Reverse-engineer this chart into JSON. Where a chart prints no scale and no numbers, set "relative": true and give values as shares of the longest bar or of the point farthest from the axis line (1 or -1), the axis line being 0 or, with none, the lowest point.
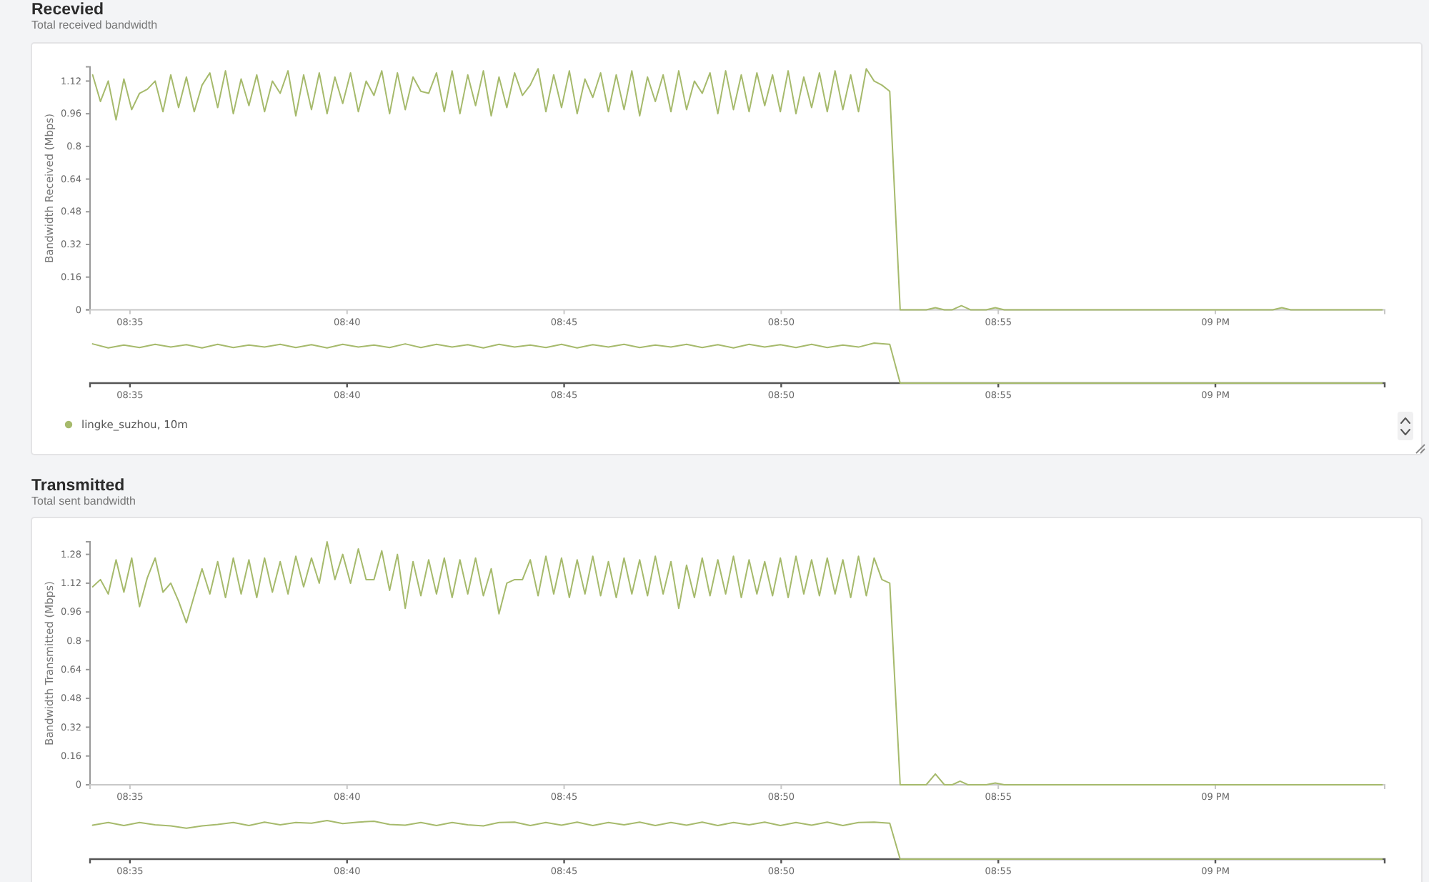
{
  "chart_data": [
    {
      "type": "line",
      "title": "Recevied",
      "subtitle": "Total received bandwidth",
      "ylabel": "Bandwidth Received (Mbps)",
      "x": [
        8.569,
        8.572,
        8.575,
        8.578,
        8.581,
        8.584,
        8.587,
        8.59,
        8.593,
        8.596,
        8.599,
        8.602,
        8.605,
        8.608,
        8.611,
        8.614,
        8.617,
        8.62,
        8.623,
        8.626,
        8.629,
        8.632,
        8.635,
        8.638,
        8.641,
        8.644,
        8.647,
        8.65,
        8.653,
        8.656,
        8.659,
        8.662,
        8.665,
        8.668,
        8.671,
        8.674,
        8.677,
        8.68,
        8.683,
        8.686,
        8.689,
        8.692,
        8.695,
        8.698,
        8.701,
        8.704,
        8.707,
        8.71,
        8.713,
        8.716,
        8.719,
        8.722,
        8.725,
        8.728,
        8.731,
        8.734,
        8.737,
        8.74,
        8.743,
        8.746,
        8.749,
        8.752,
        8.755,
        8.758,
        8.761,
        8.764,
        8.767,
        8.77,
        8.773,
        8.776,
        8.779,
        8.782,
        8.785,
        8.788,
        8.791,
        8.794,
        8.797,
        8.8,
        8.803,
        8.806,
        8.809,
        8.812,
        8.815,
        8.818,
        8.821,
        8.824,
        8.827,
        8.83,
        8.833,
        8.836,
        8.839,
        8.842,
        8.845,
        8.848,
        8.851,
        8.854,
        8.857,
        8.86,
        8.863,
        8.866,
        8.869,
        8.872,
        8.875,
        8.879,
        8.889,
        8.8925,
        8.896,
        8.899,
        8.9025,
        8.906,
        8.912,
        8.9155,
        8.919,
        9.022,
        9.0255,
        9.029,
        9.064
      ],
      "series": [
        {
          "color": "#a6ba6c",
          "values": [
            1.15,
            1.02,
            1.12,
            0.93,
            1.13,
            0.98,
            1.06,
            1.08,
            1.12,
            0.97,
            1.15,
            0.99,
            1.14,
            0.97,
            1.1,
            1.16,
            0.99,
            1.17,
            0.96,
            1.13,
            1.0,
            1.15,
            0.97,
            1.12,
            1.06,
            1.17,
            0.95,
            1.15,
            0.98,
            1.16,
            0.96,
            1.14,
            1.01,
            1.16,
            0.97,
            1.12,
            1.05,
            1.17,
            0.96,
            1.16,
            0.98,
            1.14,
            1.07,
            1.06,
            1.16,
            0.97,
            1.17,
            0.96,
            1.15,
            1.0,
            1.17,
            0.95,
            1.14,
            0.99,
            1.16,
            1.05,
            1.1,
            1.18,
            0.97,
            1.15,
            0.99,
            1.17,
            0.96,
            1.13,
            1.04,
            1.16,
            0.97,
            1.15,
            0.98,
            1.17,
            0.95,
            1.14,
            1.02,
            1.15,
            0.97,
            1.17,
            0.98,
            1.12,
            1.06,
            1.16,
            0.96,
            1.17,
            0.98,
            1.15,
            0.97,
            1.16,
            1.0,
            1.15,
            0.97,
            1.17,
            0.96,
            1.14,
            0.99,
            1.16,
            0.97,
            1.17,
            0.98,
            1.15,
            0.97,
            1.18,
            1.12,
            1.1,
            1.07,
            0,
            0,
            0.01,
            0,
            0,
            0.02,
            0,
            0,
            0.01,
            0,
            0,
            0.01,
            0,
            0
          ]
        }
      ],
      "xlim": [
        8.568,
        9.065
      ],
      "ylim": [
        0,
        1.19
      ],
      "xticks": [
        {
          "value": 8.58333,
          "label": "08:35"
        },
        {
          "value": 8.66667,
          "label": "08:40"
        },
        {
          "value": 8.75,
          "label": "08:45"
        },
        {
          "value": 8.83333,
          "label": "08:50"
        },
        {
          "value": 8.91667,
          "label": "08:55"
        },
        {
          "value": 9,
          "label": "09 PM"
        }
      ],
      "yticks": [
        0,
        0.16,
        0.32,
        0.48,
        0.64,
        0.8,
        0.96,
        1.12
      ]
    },
    {
      "type": "line",
      "relative": true,
      "x": [
        8.569,
        8.575,
        8.581,
        8.587,
        8.593,
        8.599,
        8.605,
        8.611,
        8.617,
        8.623,
        8.629,
        8.635,
        8.641,
        8.647,
        8.653,
        8.659,
        8.665,
        8.671,
        8.677,
        8.683,
        8.689,
        8.695,
        8.701,
        8.707,
        8.713,
        8.719,
        8.725,
        8.731,
        8.737,
        8.743,
        8.749,
        8.755,
        8.761,
        8.767,
        8.773,
        8.779,
        8.785,
        8.791,
        8.797,
        8.803,
        8.809,
        8.815,
        8.821,
        8.827,
        8.833,
        8.839,
        8.845,
        8.851,
        8.857,
        8.863,
        8.869,
        8.875,
        8.879,
        9.064
      ],
      "series": [
        {
          "name": "lingke_suzhou, 10m",
          "color": "#a6ba6c",
          "values": [
            0.98,
            0.88,
            0.95,
            0.89,
            0.97,
            0.9,
            0.96,
            0.88,
            0.97,
            0.89,
            0.95,
            0.9,
            0.97,
            0.89,
            0.96,
            0.88,
            0.97,
            0.9,
            0.95,
            0.89,
            0.98,
            0.89,
            0.97,
            0.9,
            0.96,
            0.88,
            0.97,
            0.9,
            0.95,
            0.89,
            0.97,
            0.88,
            0.96,
            0.9,
            0.97,
            0.89,
            0.95,
            0.9,
            0.97,
            0.89,
            0.96,
            0.88,
            0.97,
            0.9,
            0.96,
            0.89,
            0.97,
            0.89,
            0.95,
            0.9,
            1.0,
            0.97,
            0,
            0
          ]
        }
      ],
      "xlim": [
        8.568,
        9.065
      ],
      "xticks": [
        {
          "value": 8.58333,
          "label": "08:35"
        },
        {
          "value": 8.66667,
          "label": "08:40"
        },
        {
          "value": 8.75,
          "label": "08:45"
        },
        {
          "value": 8.83333,
          "label": "08:50"
        },
        {
          "value": 8.91667,
          "label": "08:55"
        },
        {
          "value": 9,
          "label": "09 PM"
        }
      ],
      "legend": "bottom left"
    },
    {
      "type": "line",
      "title": "Transmitted",
      "subtitle": "Total sent bandwidth",
      "ylabel": "Bandwidth Transmitted (Mbps)",
      "x": [
        8.569,
        8.572,
        8.575,
        8.578,
        8.581,
        8.584,
        8.587,
        8.59,
        8.593,
        8.596,
        8.599,
        8.602,
        8.605,
        8.608,
        8.611,
        8.614,
        8.617,
        8.62,
        8.623,
        8.626,
        8.629,
        8.632,
        8.635,
        8.638,
        8.641,
        8.644,
        8.647,
        8.65,
        8.653,
        8.656,
        8.659,
        8.662,
        8.665,
        8.668,
        8.671,
        8.674,
        8.677,
        8.68,
        8.683,
        8.686,
        8.689,
        8.692,
        8.695,
        8.698,
        8.701,
        8.704,
        8.707,
        8.71,
        8.713,
        8.716,
        8.719,
        8.722,
        8.725,
        8.728,
        8.731,
        8.734,
        8.737,
        8.74,
        8.743,
        8.746,
        8.749,
        8.752,
        8.755,
        8.758,
        8.761,
        8.764,
        8.767,
        8.77,
        8.773,
        8.776,
        8.779,
        8.782,
        8.785,
        8.788,
        8.791,
        8.794,
        8.797,
        8.8,
        8.803,
        8.806,
        8.809,
        8.812,
        8.815,
        8.818,
        8.821,
        8.824,
        8.827,
        8.83,
        8.833,
        8.836,
        8.839,
        8.842,
        8.845,
        8.848,
        8.851,
        8.854,
        8.857,
        8.86,
        8.863,
        8.866,
        8.869,
        8.872,
        8.875,
        8.879,
        8.889,
        8.8925,
        8.896,
        8.899,
        8.902,
        8.905,
        8.912,
        8.9155,
        8.919,
        9.064
      ],
      "series": [
        {
          "color": "#a6ba6c",
          "values": [
            1.1,
            1.14,
            1.06,
            1.25,
            1.07,
            1.26,
            0.99,
            1.15,
            1.26,
            1.07,
            1.12,
            1.02,
            0.9,
            1.05,
            1.2,
            1.06,
            1.24,
            1.04,
            1.26,
            1.06,
            1.25,
            1.04,
            1.26,
            1.07,
            1.24,
            1.06,
            1.27,
            1.1,
            1.26,
            1.12,
            1.35,
            1.14,
            1.28,
            1.12,
            1.31,
            1.14,
            1.14,
            1.3,
            1.08,
            1.28,
            0.98,
            1.24,
            1.05,
            1.25,
            1.06,
            1.26,
            1.04,
            1.25,
            1.06,
            1.26,
            1.05,
            1.2,
            0.95,
            1.12,
            1.14,
            1.14,
            1.25,
            1.05,
            1.27,
            1.06,
            1.26,
            1.04,
            1.25,
            1.06,
            1.27,
            1.05,
            1.24,
            1.04,
            1.26,
            1.06,
            1.25,
            1.05,
            1.27,
            1.06,
            1.24,
            0.98,
            1.22,
            1.04,
            1.26,
            1.05,
            1.25,
            1.06,
            1.27,
            1.04,
            1.25,
            1.06,
            1.24,
            1.05,
            1.26,
            1.04,
            1.27,
            1.06,
            1.25,
            1.05,
            1.26,
            1.06,
            1.25,
            1.04,
            1.27,
            1.05,
            1.26,
            1.14,
            1.12,
            0,
            0,
            0.06,
            0,
            0,
            0.02,
            0,
            0,
            0.01,
            0,
            0
          ]
        }
      ],
      "xlim": [
        8.568,
        9.065
      ],
      "ylim": [
        0,
        1.35
      ],
      "xticks": [
        {
          "value": 8.58333,
          "label": "08:35"
        },
        {
          "value": 8.66667,
          "label": "08:40"
        },
        {
          "value": 8.75,
          "label": "08:45"
        },
        {
          "value": 8.83333,
          "label": "08:50"
        },
        {
          "value": 8.91667,
          "label": "08:55"
        },
        {
          "value": 9,
          "label": "09 PM"
        }
      ],
      "yticks": [
        0,
        0.16,
        0.32,
        0.48,
        0.64,
        0.8,
        0.96,
        1.12,
        1.28
      ]
    },
    {
      "type": "line",
      "relative": true,
      "x": [
        8.569,
        8.575,
        8.581,
        8.587,
        8.593,
        8.599,
        8.605,
        8.611,
        8.617,
        8.623,
        8.629,
        8.635,
        8.641,
        8.647,
        8.653,
        8.659,
        8.665,
        8.671,
        8.677,
        8.683,
        8.689,
        8.695,
        8.701,
        8.707,
        8.713,
        8.719,
        8.725,
        8.731,
        8.737,
        8.743,
        8.749,
        8.755,
        8.761,
        8.767,
        8.773,
        8.779,
        8.785,
        8.791,
        8.797,
        8.803,
        8.809,
        8.815,
        8.821,
        8.827,
        8.833,
        8.839,
        8.845,
        8.851,
        8.857,
        8.863,
        8.869,
        8.875,
        8.879,
        9.064
      ],
      "series": [
        {
          "color": "#a6ba6c",
          "values": [
            0.88,
            0.95,
            0.87,
            0.95,
            0.89,
            0.86,
            0.8,
            0.86,
            0.9,
            0.95,
            0.87,
            0.96,
            0.89,
            0.95,
            0.93,
            1.0,
            0.92,
            0.96,
            0.98,
            0.9,
            0.88,
            0.95,
            0.87,
            0.95,
            0.89,
            0.86,
            0.95,
            0.96,
            0.87,
            0.95,
            0.88,
            0.96,
            0.87,
            0.95,
            0.89,
            0.96,
            0.87,
            0.95,
            0.88,
            0.96,
            0.87,
            0.95,
            0.89,
            0.96,
            0.87,
            0.95,
            0.88,
            0.96,
            0.87,
            0.95,
            0.96,
            0.93,
            0,
            0
          ]
        }
      ],
      "xlim": [
        8.568,
        9.065
      ],
      "xticks": [
        {
          "value": 8.58333,
          "label": "08:35"
        },
        {
          "value": 8.66667,
          "label": "08:40"
        },
        {
          "value": 8.75,
          "label": "08:45"
        },
        {
          "value": 8.83333,
          "label": "08:50"
        },
        {
          "value": 8.91667,
          "label": "08:55"
        },
        {
          "value": 9,
          "label": "09 PM"
        }
      ]
    }
  ]
}
